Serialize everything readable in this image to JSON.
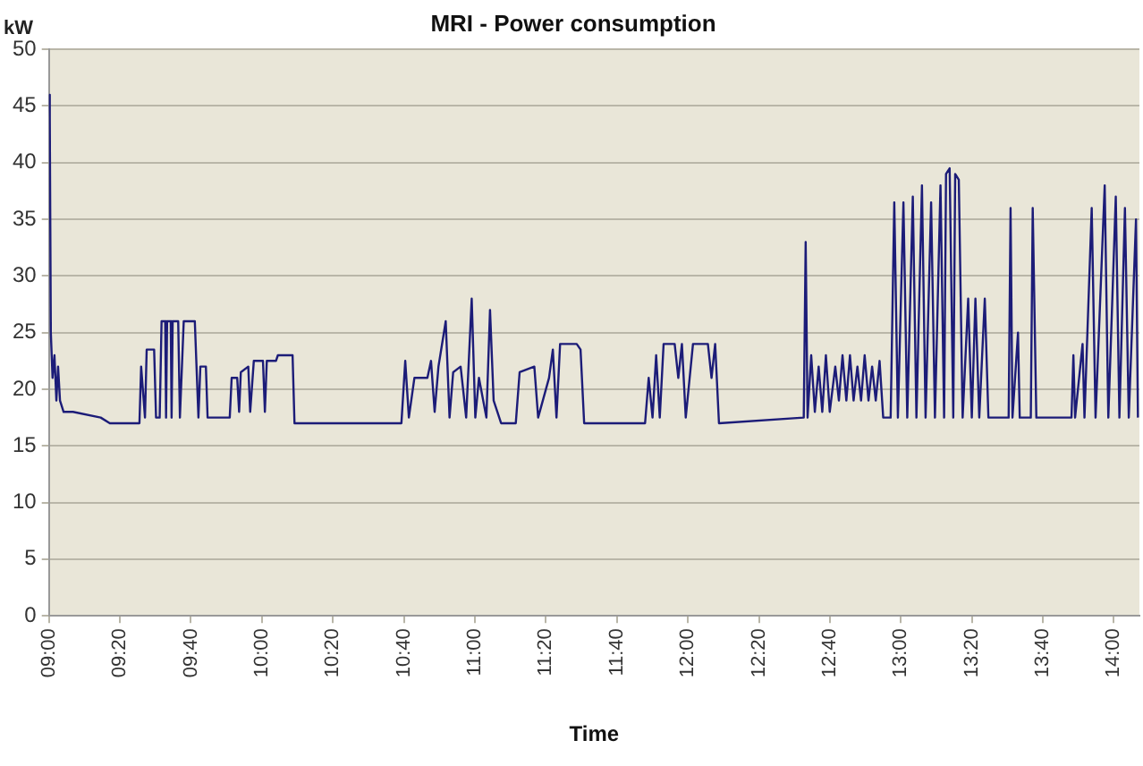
{
  "chart_data": {
    "type": "line",
    "title": "MRI - Power consumption",
    "xlabel": "Time",
    "ylabel": "kW",
    "x": [
      9.0,
      9.004,
      9.009,
      9.017,
      9.026,
      9.035,
      9.043,
      9.052,
      9.069,
      9.113,
      9.243,
      9.286,
      9.425,
      9.433,
      9.451,
      9.459,
      9.494,
      9.503,
      9.52,
      9.529,
      9.546,
      9.55,
      9.555,
      9.572,
      9.576,
      9.581,
      9.607,
      9.615,
      9.633,
      9.685,
      9.702,
      9.711,
      9.737,
      9.745,
      9.849,
      9.858,
      9.884,
      9.893,
      9.901,
      9.936,
      9.945,
      9.962,
      10.005,
      10.014,
      10.023,
      10.066,
      10.075,
      10.144,
      10.153,
      10.655,
      10.673,
      10.69,
      10.716,
      10.777,
      10.794,
      10.811,
      10.829,
      10.863,
      10.881,
      10.898,
      10.933,
      10.959,
      10.985,
      11.002,
      11.019,
      11.054,
      11.071,
      11.088,
      11.123,
      11.192,
      11.21,
      11.279,
      11.297,
      11.348,
      11.366,
      11.383,
      11.4,
      11.478,
      11.496,
      11.513,
      11.799,
      11.816,
      11.834,
      11.851,
      11.868,
      11.886,
      11.938,
      11.955,
      11.972,
      11.99,
      12.024,
      12.094,
      12.111,
      12.128,
      12.146,
      12.544,
      12.553,
      12.562,
      12.579,
      12.596,
      12.614,
      12.631,
      12.648,
      12.666,
      12.692,
      12.709,
      12.726,
      12.744,
      12.761,
      12.778,
      12.796,
      12.813,
      12.83,
      12.848,
      12.865,
      12.882,
      12.9,
      12.917,
      12.952,
      12.969,
      12.986,
      13.012,
      13.03,
      13.056,
      13.073,
      13.099,
      13.116,
      13.142,
      13.16,
      13.186,
      13.203,
      13.212,
      13.229,
      13.246,
      13.255,
      13.272,
      13.29,
      13.316,
      13.333,
      13.35,
      13.368,
      13.394,
      13.411,
      13.506,
      13.515,
      13.524,
      13.55,
      13.558,
      13.61,
      13.619,
      13.636,
      13.801,
      13.81,
      13.818,
      13.853,
      13.862,
      13.896,
      13.914,
      13.957,
      13.974,
      14.009,
      14.026,
      14.052,
      14.07,
      14.104,
      14.113
    ],
    "series": [
      {
        "color": "#1c1c78",
        "values": [
          46,
          44,
          25,
          21,
          23,
          19,
          22,
          19,
          18,
          18,
          17.5,
          17,
          17,
          22,
          17.5,
          23.5,
          23.5,
          17.5,
          17.5,
          26,
          26,
          17.5,
          26,
          26,
          17.5,
          26,
          26,
          17.5,
          26,
          26,
          17.5,
          22,
          22,
          17.5,
          17.5,
          21,
          21,
          18,
          21.5,
          22,
          18,
          22.5,
          22.5,
          18,
          22.5,
          22.5,
          23,
          23,
          17,
          17,
          22.5,
          17.5,
          21,
          21,
          22.5,
          18,
          22,
          26,
          17.5,
          21.5,
          22,
          17.5,
          28,
          17.5,
          21,
          17.5,
          27,
          19,
          17,
          17,
          21.5,
          22,
          17.5,
          21,
          23.5,
          17.5,
          24,
          24,
          23.5,
          17,
          17,
          21,
          17.5,
          23,
          17.5,
          24,
          24,
          21,
          24,
          17.5,
          24,
          24,
          21,
          24,
          17,
          17.5,
          33,
          17.5,
          23,
          18,
          22,
          18,
          23,
          18,
          22,
          19,
          23,
          19,
          23,
          19,
          22,
          19,
          23,
          19,
          22,
          19,
          22.5,
          17.5,
          17.5,
          36.5,
          17.5,
          36.5,
          17.5,
          37,
          17.5,
          38,
          17.5,
          36.5,
          17.5,
          38,
          17.5,
          39,
          39.5,
          17.5,
          39,
          38.5,
          17.5,
          28,
          17.5,
          28,
          17.5,
          28,
          17.5,
          17.5,
          36,
          17.5,
          25,
          17.5,
          17.5,
          36,
          17.5,
          17.5,
          23,
          17.5,
          24,
          17.5,
          36,
          17.5,
          38,
          17.5,
          37,
          17.5,
          36,
          17.5,
          35,
          17.5
        ]
      }
    ],
    "xlim": [
      9,
      14.12
    ],
    "xticks": [
      {
        "value": 9,
        "label": "09:00"
      },
      {
        "value": 9.3333,
        "label": "09:20"
      },
      {
        "value": 9.6667,
        "label": "09:40"
      },
      {
        "value": 10,
        "label": "10:00"
      },
      {
        "value": 10.3333,
        "label": "10:20"
      },
      {
        "value": 10.6667,
        "label": "10:40"
      },
      {
        "value": 11,
        "label": "11:00"
      },
      {
        "value": 11.3333,
        "label": "11:20"
      },
      {
        "value": 11.6667,
        "label": "11:40"
      },
      {
        "value": 12,
        "label": "12:00"
      },
      {
        "value": 12.3333,
        "label": "12:20"
      },
      {
        "value": 12.6667,
        "label": "12:40"
      },
      {
        "value": 13,
        "label": "13:00"
      },
      {
        "value": 13.3333,
        "label": "13:20"
      },
      {
        "value": 13.6667,
        "label": "13:40"
      },
      {
        "value": 14,
        "label": "14:00"
      }
    ],
    "ylim": [
      0,
      50
    ],
    "yticks": [
      0,
      5,
      10,
      15,
      20,
      25,
      30,
      35,
      40,
      45,
      50
    ],
    "grid": "y",
    "legend": false,
    "marker": "none",
    "line_style": "solid"
  }
}
